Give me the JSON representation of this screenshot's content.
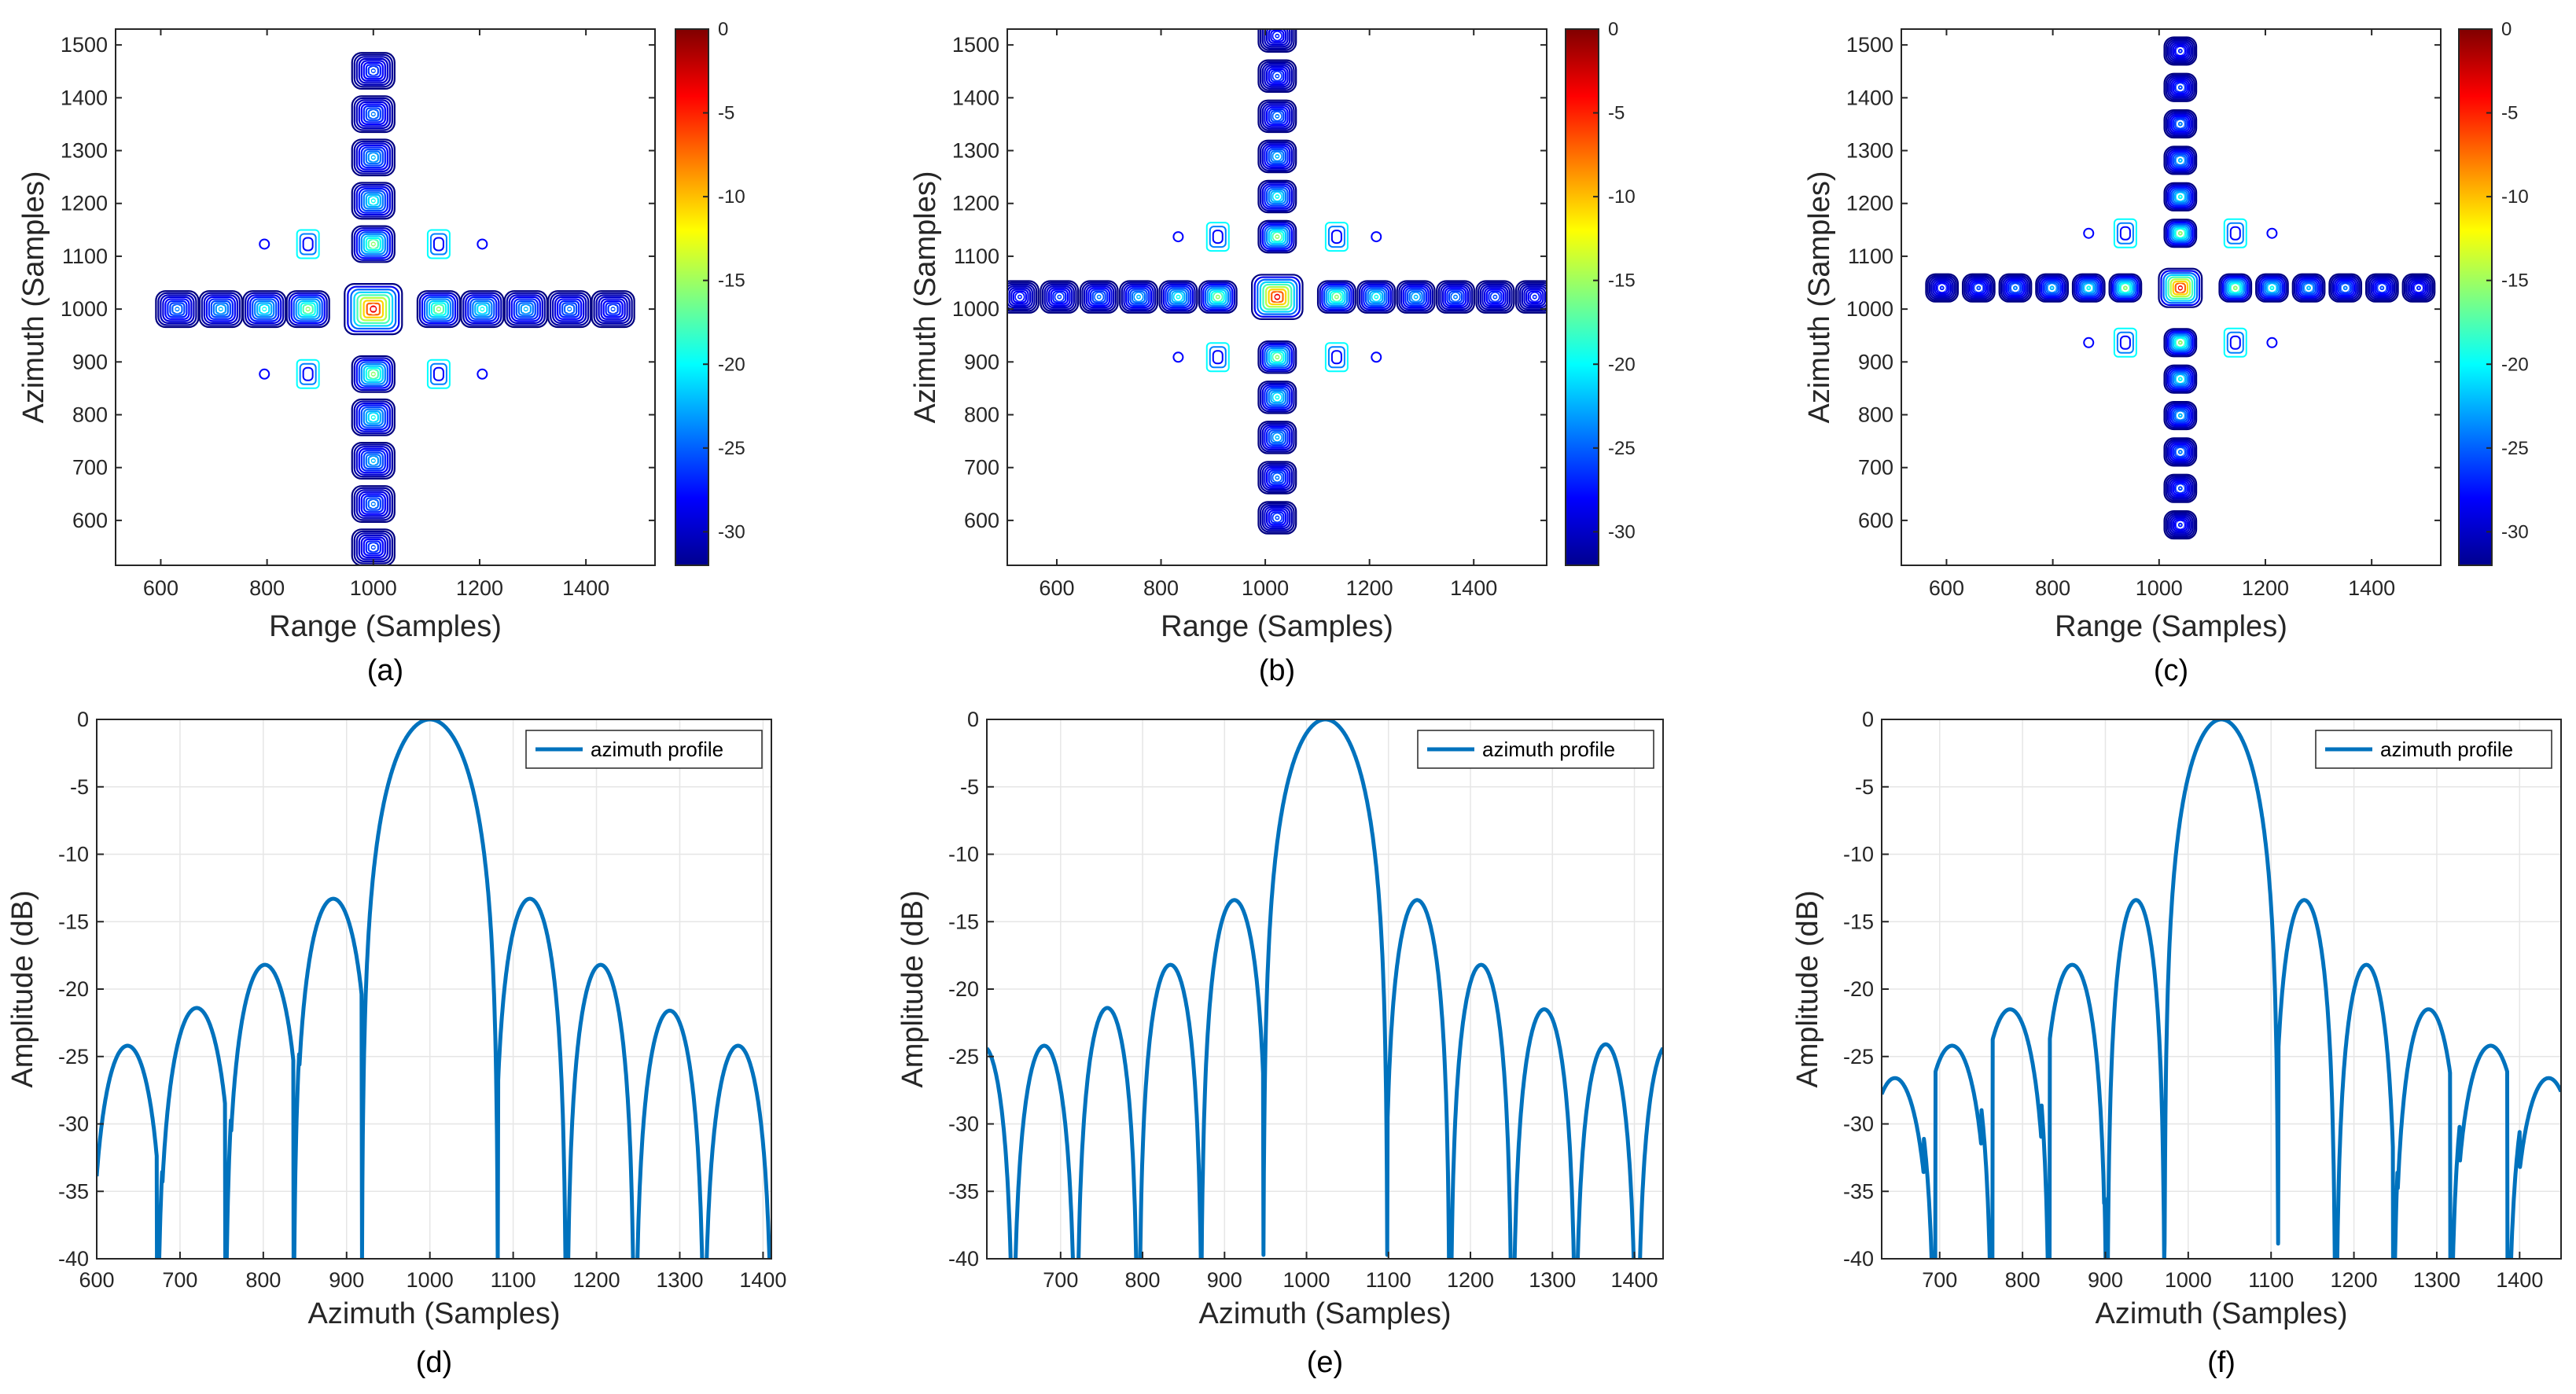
{
  "chart_data": [
    {
      "type": "contour",
      "panel": "(a)",
      "xlabel": "Range (Samples)",
      "ylabel": "Azimuth (Samples)",
      "xlim": [
        515,
        1530
      ],
      "ylim": [
        515,
        1530
      ],
      "xticks": [
        600,
        800,
        1000,
        1200,
        1400
      ],
      "yticks": [
        600,
        700,
        800,
        900,
        1000,
        1100,
        1200,
        1300,
        1400,
        1500
      ],
      "center": [
        1000,
        1000
      ],
      "lobe_spacing_range": 82,
      "lobe_spacing_azimuth": 82,
      "lobe_width_range": 40,
      "lobe_width_azimuth": 34,
      "range_lobe_extent": [
        565,
        1490
      ],
      "azimuth_lobe_extent": [
        540,
        1520
      ],
      "colorbar": {
        "min": -32,
        "max": 0,
        "ticks": [
          0,
          -5,
          -10,
          -15,
          -20,
          -25,
          -30
        ]
      }
    },
    {
      "type": "contour",
      "panel": "(b)",
      "xlabel": "Range (Samples)",
      "ylabel": "Azimuth (Samples)",
      "xlim": [
        505,
        1540
      ],
      "ylim": [
        515,
        1530
      ],
      "xticks": [
        600,
        800,
        1000,
        1200,
        1400
      ],
      "yticks": [
        600,
        700,
        800,
        900,
        1000,
        1100,
        1200,
        1300,
        1400,
        1500
      ],
      "center": [
        1023,
        1023
      ],
      "lobe_spacing_range": 76,
      "lobe_spacing_azimuth": 76,
      "lobe_width_range": 36,
      "lobe_width_azimuth": 30,
      "range_lobe_extent": [
        500,
        1540
      ],
      "azimuth_lobe_extent": [
        530,
        1530
      ],
      "colorbar": {
        "min": -32,
        "max": 0,
        "ticks": [
          0,
          -5,
          -10,
          -15,
          -20,
          -25,
          -30
        ]
      }
    },
    {
      "type": "contour",
      "panel": "(c)",
      "xlabel": "Range (Samples)",
      "ylabel": "Azimuth (Samples)",
      "xlim": [
        515,
        1530
      ],
      "ylim": [
        515,
        1530
      ],
      "xticks": [
        600,
        800,
        1000,
        1200,
        1400
      ],
      "yticks": [
        600,
        700,
        800,
        900,
        1000,
        1100,
        1200,
        1300,
        1400,
        1500
      ],
      "center": [
        1040,
        1040
      ],
      "lobe_spacing_range": 69,
      "lobe_spacing_azimuth": 69,
      "lobe_width_range": 30,
      "lobe_width_azimuth": 26,
      "range_lobe_extent": [
        545,
        1490
      ],
      "azimuth_lobe_extent": [
        580,
        1520
      ],
      "colorbar": {
        "min": -32,
        "max": 0,
        "ticks": [
          0,
          -5,
          -10,
          -15,
          -20,
          -25,
          -30
        ]
      }
    },
    {
      "type": "line",
      "panel": "(d)",
      "xlabel": "Azimuth (Samples)",
      "ylabel": "Amplitude (dB)",
      "xlim": [
        600,
        1410
      ],
      "ylim": [
        -40,
        0
      ],
      "xticks": [
        600,
        700,
        800,
        900,
        1000,
        1100,
        1200,
        1300,
        1400
      ],
      "yticks": [
        0,
        -5,
        -10,
        -15,
        -20,
        -25,
        -30,
        -35,
        -40
      ],
      "series": [
        {
          "name": "azimuth profile",
          "center": 1000,
          "null_spacing": 82,
          "peaks": [
            {
              "x": 637,
              "y": -24.2
            },
            {
              "x": 720,
              "y": -21.4
            },
            {
              "x": 802,
              "y": -18.2
            },
            {
              "x": 884,
              "y": -13.3
            },
            {
              "x": 1000,
              "y": 0
            },
            {
              "x": 1120,
              "y": -13.3
            },
            {
              "x": 1205,
              "y": -18.2
            },
            {
              "x": 1288,
              "y": -21.6
            },
            {
              "x": 1370,
              "y": -24.2
            }
          ]
        }
      ],
      "legend": "azimuth profile"
    },
    {
      "type": "line",
      "panel": "(e)",
      "xlabel": "Azimuth (Samples)",
      "ylabel": "Amplitude (dB)",
      "xlim": [
        610,
        1435
      ],
      "ylim": [
        -40,
        0
      ],
      "xticks": [
        700,
        800,
        900,
        1000,
        1100,
        1200,
        1300,
        1400
      ],
      "yticks": [
        0,
        -5,
        -10,
        -15,
        -20,
        -25,
        -30,
        -35,
        -40
      ],
      "series": [
        {
          "name": "azimuth profile",
          "center": 1023,
          "null_spacing": 76,
          "peaks": [
            {
              "x": 680,
              "y": -24.2
            },
            {
              "x": 757,
              "y": -21.4
            },
            {
              "x": 834,
              "y": -18.2
            },
            {
              "x": 912,
              "y": -13.4
            },
            {
              "x": 1023,
              "y": 0
            },
            {
              "x": 1135,
              "y": -13.4
            },
            {
              "x": 1213,
              "y": -18.2
            },
            {
              "x": 1290,
              "y": -21.5
            },
            {
              "x": 1365,
              "y": -24.1
            }
          ]
        }
      ],
      "legend": "azimuth profile"
    },
    {
      "type": "line",
      "panel": "(f)",
      "xlabel": "Azimuth (Samples)",
      "ylabel": "Amplitude (dB)",
      "xlim": [
        630,
        1450
      ],
      "ylim": [
        -40,
        0
      ],
      "xticks": [
        700,
        800,
        900,
        1000,
        1100,
        1200,
        1300,
        1400
      ],
      "yticks": [
        0,
        -5,
        -10,
        -15,
        -20,
        -25,
        -30,
        -35,
        -40
      ],
      "series": [
        {
          "name": "azimuth profile",
          "center": 1040,
          "null_spacing": 69,
          "peaks": [
            {
              "x": 646,
              "y": -26.6
            },
            {
              "x": 715,
              "y": -24.2
            },
            {
              "x": 785,
              "y": -21.5
            },
            {
              "x": 860,
              "y": -18.2
            },
            {
              "x": 937,
              "y": -13.4
            },
            {
              "x": 1040,
              "y": 0
            },
            {
              "x": 1140,
              "y": -13.4
            },
            {
              "x": 1215,
              "y": -18.2
            },
            {
              "x": 1290,
              "y": -21.5
            },
            {
              "x": 1365,
              "y": -24.2
            },
            {
              "x": 1435,
              "y": -26.6
            }
          ]
        }
      ],
      "legend": "azimuth profile"
    }
  ],
  "colors": {
    "profile_line": "#0072BD",
    "grid": "#e6e6e6",
    "axes": "#262626",
    "contour_outer": "#00008f"
  },
  "colormap": "jet"
}
